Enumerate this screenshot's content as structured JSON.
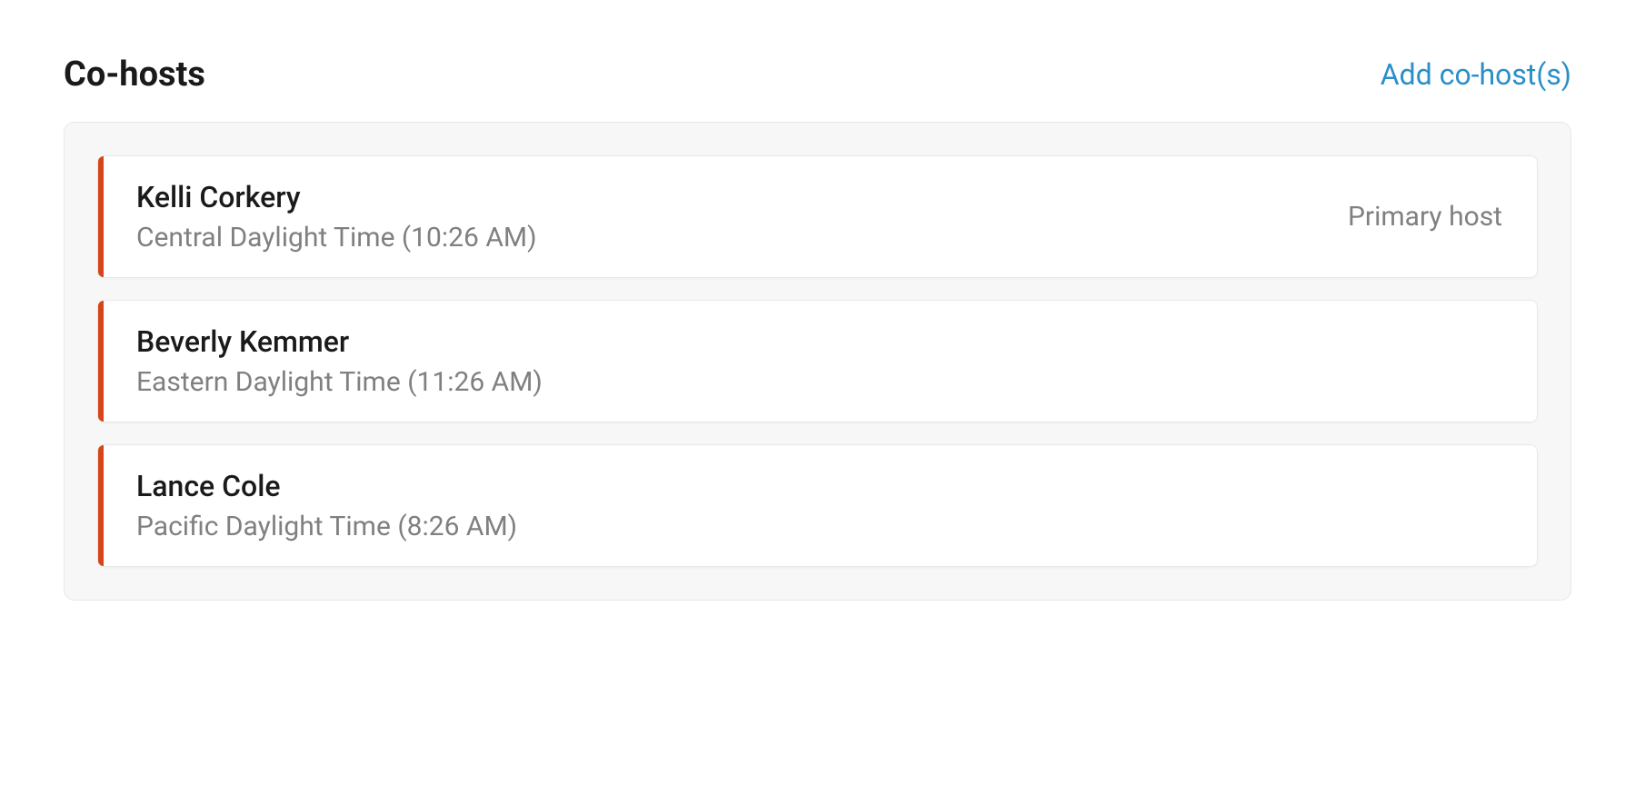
{
  "section": {
    "title": "Co-hosts",
    "add_link_label": "Add co-host(s)"
  },
  "styling": {
    "accent_color": "#d64417",
    "link_color": "#2a8ec9",
    "panel_bg": "#f7f7f7",
    "card_bg": "#ffffff",
    "border_color": "#e8e8e8",
    "title_color": "#1a1a1a",
    "muted_text_color": "#808080",
    "title_fontsize": 38,
    "name_fontsize": 32,
    "tz_fontsize": 30,
    "badge_fontsize": 30
  },
  "hosts": [
    {
      "name": "Kelli Corkery",
      "timezone": "Central Daylight Time (10:26 AM)",
      "badge": "Primary host"
    },
    {
      "name": "Beverly Kemmer",
      "timezone": "Eastern Daylight Time (11:26 AM)",
      "badge": ""
    },
    {
      "name": "Lance Cole",
      "timezone": "Pacific Daylight Time (8:26 AM)",
      "badge": ""
    }
  ]
}
